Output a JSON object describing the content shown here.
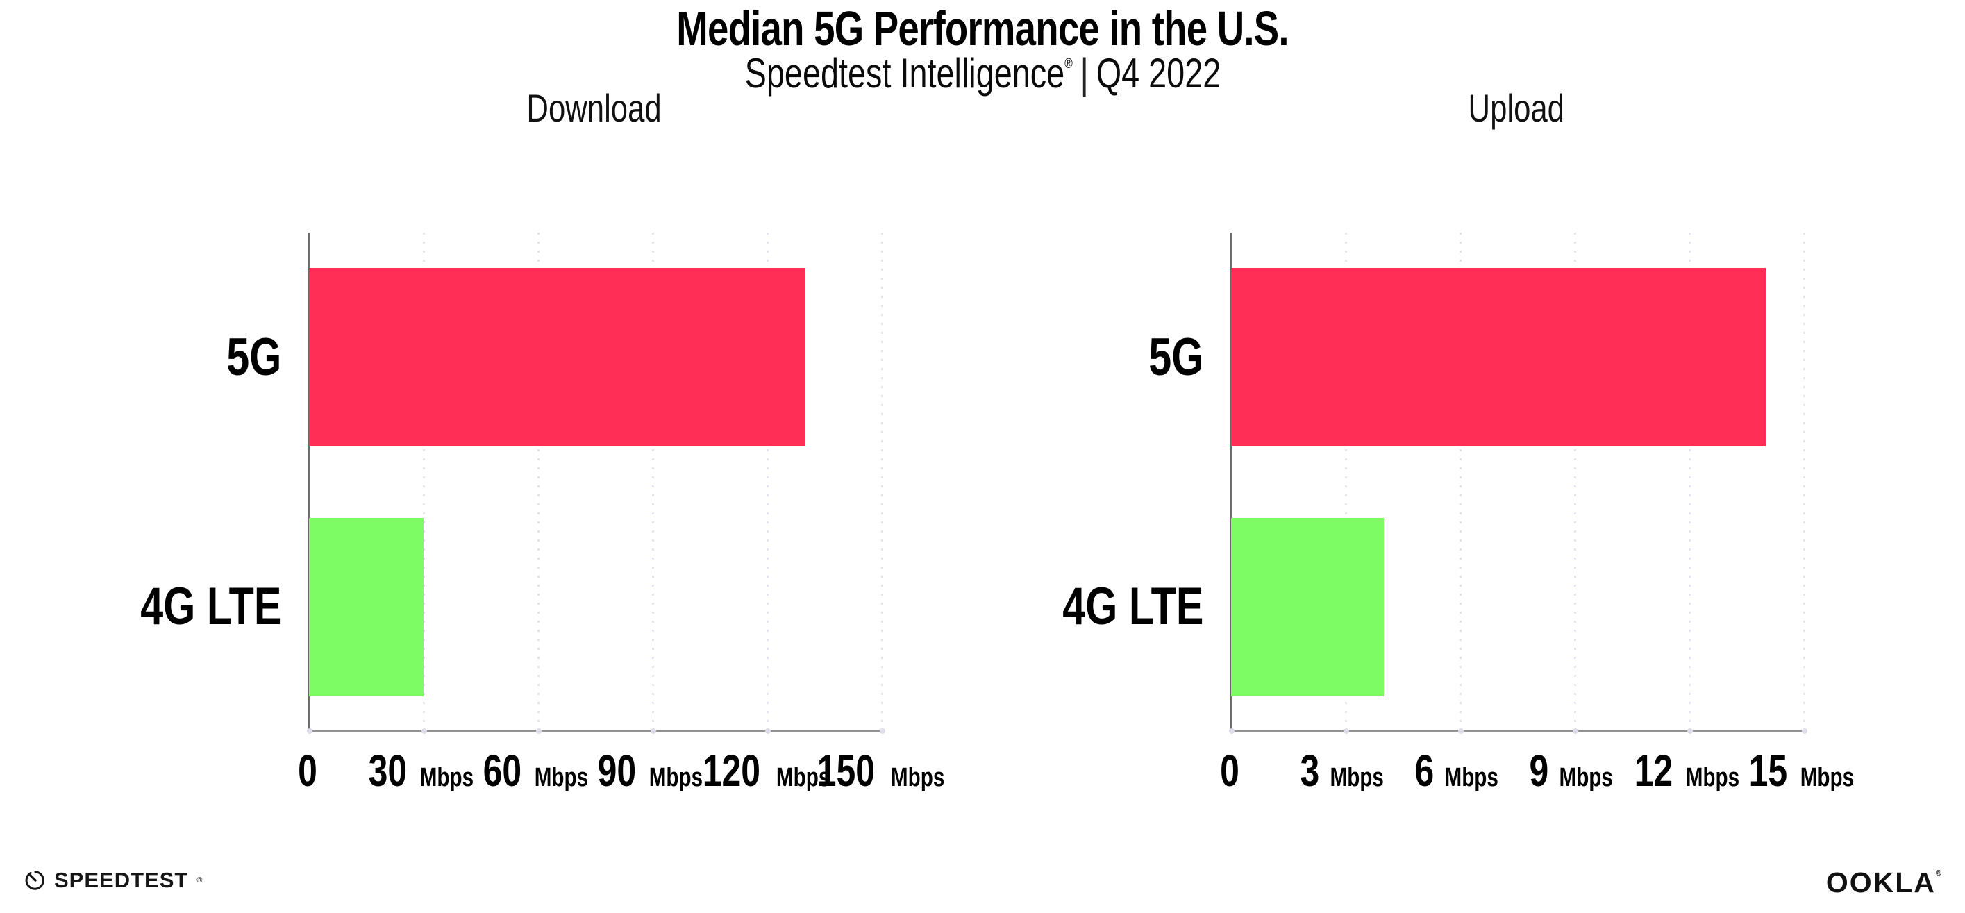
{
  "header": {
    "title": "Median 5G Performance in the U.S.",
    "subtitle": {
      "brand": "Speedtest Intelligence",
      "registered": "®",
      "divider": "|",
      "period": "Q4 2022"
    }
  },
  "chart_data": [
    {
      "type": "bar",
      "orientation": "horizontal",
      "title": "Download",
      "categories": [
        "5G",
        "4G LTE"
      ],
      "values": [
        130,
        30
      ],
      "unit": "Mbps",
      "xlim": [
        0,
        150
      ],
      "xticks": [
        0,
        30,
        60,
        90,
        120,
        150
      ],
      "bar_colors": [
        "#FF2E57",
        "#7EFC64"
      ],
      "grid": "dotted-vertical",
      "legend": "none"
    },
    {
      "type": "bar",
      "orientation": "horizontal",
      "title": "Upload",
      "categories": [
        "5G",
        "4G LTE"
      ],
      "values": [
        14,
        4
      ],
      "unit": "Mbps",
      "xlim": [
        0,
        15
      ],
      "xticks": [
        0,
        3,
        6,
        9,
        12,
        15
      ],
      "bar_colors": [
        "#FF2E57",
        "#7EFC64"
      ],
      "grid": "dotted-vertical",
      "legend": "none"
    }
  ],
  "footer": {
    "speedtest": {
      "text": "SPEEDTEST",
      "registered": "®"
    },
    "ookla": {
      "text": "OOKLA",
      "registered": "®"
    }
  },
  "colors": {
    "bar_5g": "#FF2E57",
    "bar_4g_lte": "#7EFC64",
    "gridline": "#E4E3ED",
    "axis_left": "#6B6B6B",
    "axis_bottom": "#919191",
    "text": "#0D0D0D",
    "background": "#FFFFFF"
  }
}
